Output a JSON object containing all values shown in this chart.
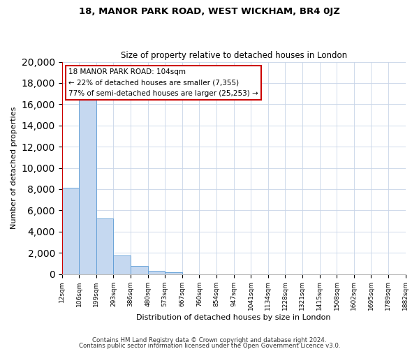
{
  "title": "18, MANOR PARK ROAD, WEST WICKHAM, BR4 0JZ",
  "subtitle": "Size of property relative to detached houses in London",
  "xlabel": "Distribution of detached houses by size in London",
  "ylabel": "Number of detached properties",
  "bin_labels": [
    "12sqm",
    "106sqm",
    "199sqm",
    "293sqm",
    "386sqm",
    "480sqm",
    "573sqm",
    "667sqm",
    "760sqm",
    "854sqm",
    "947sqm",
    "1041sqm",
    "1134sqm",
    "1228sqm",
    "1321sqm",
    "1415sqm",
    "1508sqm",
    "1602sqm",
    "1695sqm",
    "1789sqm",
    "1882sqm"
  ],
  "bar_heights": [
    8100,
    16600,
    5250,
    1750,
    750,
    300,
    200,
    0,
    0,
    0,
    0,
    0,
    0,
    0,
    0,
    0,
    0,
    0,
    0,
    0
  ],
  "bar_color": "#c5d8f0",
  "bar_edge_color": "#5b9bd5",
  "vline_x": 0,
  "vline_color": "#cc0000",
  "annotation_text": "18 MANOR PARK ROAD: 104sqm\n← 22% of detached houses are smaller (7,355)\n77% of semi-detached houses are larger (25,253) →",
  "annotation_box_color": "#ffffff",
  "annotation_box_edge": "#cc0000",
  "ylim": [
    0,
    20000
  ],
  "yticks": [
    0,
    2000,
    4000,
    6000,
    8000,
    10000,
    12000,
    14000,
    16000,
    18000,
    20000
  ],
  "footer1": "Contains HM Land Registry data © Crown copyright and database right 2024.",
  "footer2": "Contains public sector information licensed under the Open Government Licence v3.0.",
  "bg_color": "#ffffff",
  "grid_color": "#c8d4e8",
  "fig_bg": "#ffffff"
}
